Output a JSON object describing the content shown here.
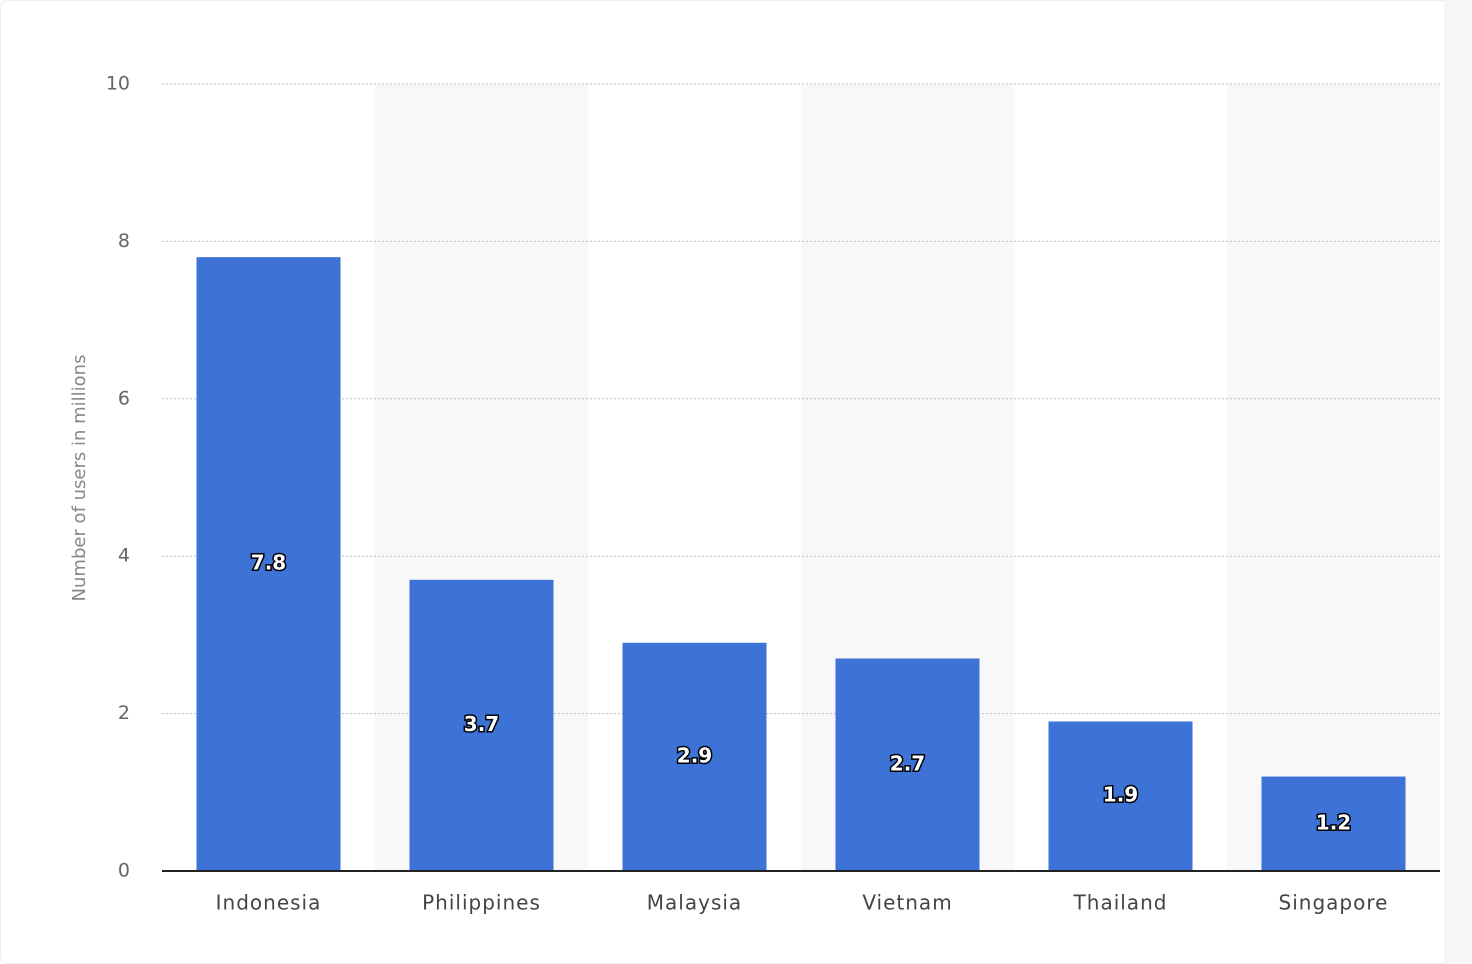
{
  "chart_data": {
    "type": "bar",
    "y_label": "Number of users in millions",
    "categories": [
      "Indonesia",
      "Philippines",
      "Malaysia",
      "Vietnam",
      "Thailand",
      "Singapore"
    ],
    "values": [
      7.8,
      3.7,
      2.9,
      2.7,
      1.9,
      1.2
    ],
    "color": "#3d72d6",
    "ylim": [
      0,
      10
    ],
    "yticks": [
      0,
      2,
      4,
      6,
      8,
      10
    ],
    "grid": true
  }
}
